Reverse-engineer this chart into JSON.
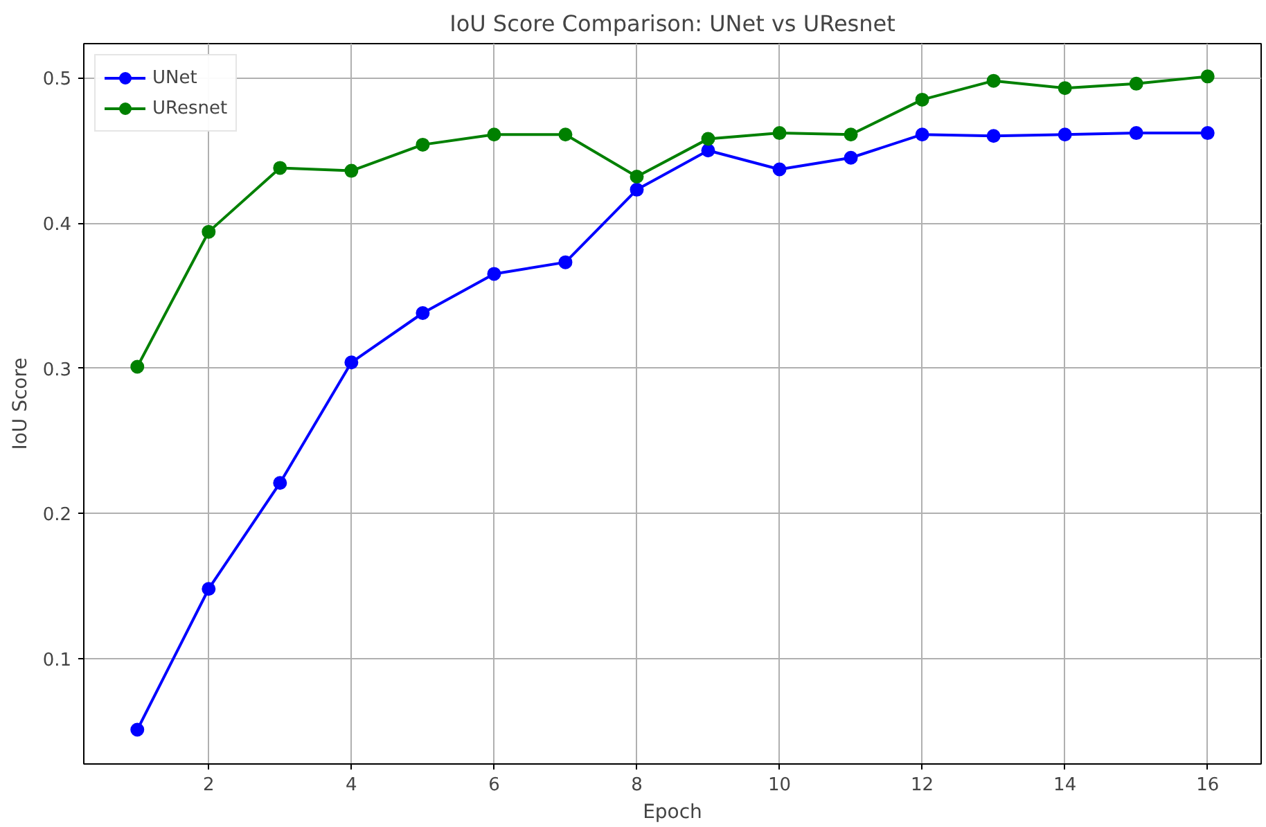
{
  "chart_data": {
    "type": "line",
    "title": "IoU Score Comparison: UNet vs UResnet",
    "xlabel": "Epoch",
    "ylabel": "IoU Score",
    "x": [
      1,
      2,
      3,
      4,
      5,
      6,
      7,
      8,
      9,
      10,
      11,
      12,
      13,
      14,
      15,
      16
    ],
    "series": [
      {
        "name": "UNet",
        "color": "#0000ff",
        "values": [
          0.051,
          0.148,
          0.221,
          0.304,
          0.338,
          0.365,
          0.373,
          0.423,
          0.45,
          0.437,
          0.445,
          0.461,
          0.46,
          0.461,
          0.462,
          0.462
        ]
      },
      {
        "name": "UResnet",
        "color": "#008000",
        "values": [
          0.301,
          0.394,
          0.438,
          0.436,
          0.454,
          0.461,
          0.461,
          0.432,
          0.458,
          0.462,
          0.461,
          0.485,
          0.498,
          0.493,
          0.496,
          0.501
        ]
      }
    ],
    "xlim": [
      0.25,
      16.75
    ],
    "ylim": [
      0.0274,
      0.5236
    ],
    "xticks": [
      2,
      4,
      6,
      8,
      10,
      12,
      14,
      16
    ],
    "yticks": [
      0.1,
      0.2,
      0.3,
      0.4,
      0.5
    ],
    "grid": true,
    "legend": "top left",
    "marker": "circle",
    "line_style": "solid"
  }
}
